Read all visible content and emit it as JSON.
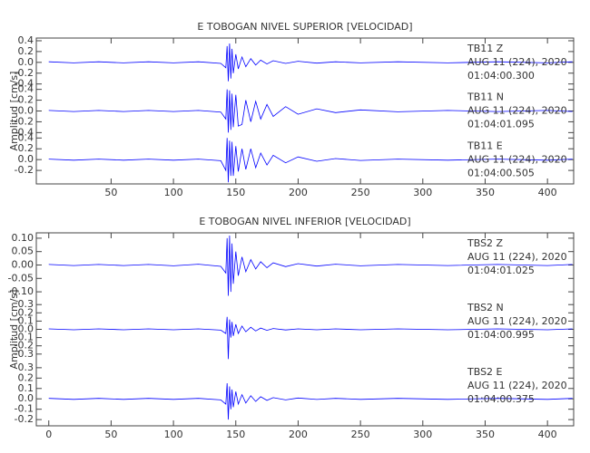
{
  "chart_data": [
    {
      "type": "line",
      "title": "E TOBOGAN NIVEL SUPERIOR [VELOCIDAD]",
      "y_label": "Amplitud [cm/s]",
      "xlim": [
        -10,
        421
      ],
      "xticks": [
        50,
        100,
        150,
        200,
        250,
        300,
        350,
        400
      ],
      "x": [
        0,
        20,
        40,
        60,
        80,
        100,
        120,
        138,
        142,
        143,
        144,
        145,
        146,
        147,
        148,
        150,
        152,
        155,
        158,
        162,
        166,
        170,
        175,
        180,
        190,
        200,
        215,
        230,
        250,
        280,
        320,
        360,
        400,
        420
      ],
      "series": [
        {
          "name": "TB11   Z",
          "date": "AUG 11 (224), 2020",
          "time": "01:04:00.300",
          "color": "#0000ff",
          "ylim": [
            -0.45,
            0.45
          ],
          "yticks": [
            {
              "value": 0.4,
              "label": "0.4"
            },
            {
              "value": 0.2,
              "label": "0.2"
            },
            {
              "value": 0,
              "label": "0.0"
            },
            {
              "value": -0.2,
              "label": "-0.2"
            },
            {
              "value": -0.4,
              "label": "-0.4"
            }
          ],
          "values": [
            0.01,
            -0.01,
            0.01,
            -0.01,
            0.01,
            -0.01,
            0.01,
            -0.02,
            -0.1,
            0.3,
            -0.35,
            0.35,
            -0.3,
            0.25,
            -0.2,
            0.15,
            -0.12,
            0.1,
            -0.08,
            0.07,
            -0.05,
            0.04,
            -0.03,
            0.03,
            -0.02,
            0.02,
            -0.015,
            0.01,
            -0.01,
            0.01,
            -0.01,
            0.01,
            -0.01,
            0.01
          ]
        },
        {
          "name": "TB11   N",
          "date": "AUG 11 (224), 2020",
          "time": "01:04:01.095",
          "color": "#0000ff",
          "ylim": [
            -0.45,
            0.45
          ],
          "yticks": [
            {
              "value": 0.4,
              "label": "0.4"
            },
            {
              "value": 0.2,
              "label": "0.2"
            },
            {
              "value": 0,
              "label": "0.0"
            },
            {
              "value": -0.2,
              "label": "-0.2"
            },
            {
              "value": -0.4,
              "label": "-0.4"
            }
          ],
          "values": [
            0.01,
            -0.01,
            0.01,
            -0.01,
            0.01,
            -0.01,
            0.01,
            -0.02,
            -0.15,
            0.4,
            -0.4,
            0.38,
            -0.35,
            0.32,
            -0.3,
            0.3,
            -0.28,
            -0.25,
            0.2,
            -0.2,
            0.18,
            -0.15,
            0.12,
            -0.1,
            0.08,
            -0.06,
            0.04,
            -0.03,
            0.02,
            -0.015,
            0.01,
            -0.01,
            0.01,
            -0.01
          ]
        },
        {
          "name": "TB11   E",
          "date": "AUG 11 (224), 2020",
          "time": "01:04:00.505",
          "color": "#0000ff",
          "ylim": [
            -0.45,
            0.45
          ],
          "yticks": [
            {
              "value": 0.4,
              "label": "0.4"
            },
            {
              "value": 0.2,
              "label": "0.2"
            },
            {
              "value": 0,
              "label": "0.0"
            },
            {
              "value": -0.2,
              "label": "-0.2"
            }
          ],
          "values": [
            0.01,
            -0.01,
            0.01,
            -0.01,
            0.01,
            -0.01,
            0.01,
            -0.02,
            -0.2,
            0.4,
            -0.42,
            0.35,
            -0.3,
            0.33,
            -0.3,
            0.25,
            -0.22,
            0.2,
            -0.18,
            0.2,
            -0.15,
            0.12,
            -0.1,
            0.08,
            -0.06,
            0.05,
            -0.03,
            0.02,
            -0.015,
            0.01,
            -0.01,
            0.01,
            -0.01,
            0.01
          ]
        }
      ]
    },
    {
      "type": "line",
      "title": "E TOBOGAN NIVEL INFERIOR [VELOCIDAD]",
      "y_label": "Amplitud [cm/s]",
      "xlim": [
        -10,
        421
      ],
      "xticks": [
        0,
        50,
        100,
        150,
        200,
        250,
        300,
        350,
        400
      ],
      "x": [
        0,
        20,
        40,
        60,
        80,
        100,
        120,
        138,
        142,
        143,
        144,
        145,
        146,
        147,
        148,
        150,
        152,
        155,
        158,
        162,
        166,
        170,
        175,
        180,
        190,
        200,
        215,
        230,
        250,
        280,
        320,
        360,
        400,
        420
      ],
      "series": [
        {
          "name": "TBS2   Z",
          "date": "AUG 11 (224), 2020",
          "time": "01:04:01.025",
          "color": "#0000ff",
          "ylim": [
            -0.12,
            0.12
          ],
          "yticks": [
            {
              "value": 0.1,
              "label": "0.10"
            },
            {
              "value": 0.05,
              "label": "0.05"
            },
            {
              "value": 0,
              "label": "0.00"
            },
            {
              "value": -0.05,
              "label": "-0.05"
            },
            {
              "value": -0.1,
              "label": "-0.10"
            }
          ],
          "values": [
            0.002,
            -0.002,
            0.002,
            -0.002,
            0.002,
            -0.003,
            0.003,
            -0.005,
            -0.03,
            0.1,
            -0.115,
            0.11,
            -0.1,
            0.08,
            -0.07,
            0.05,
            -0.04,
            0.03,
            -0.025,
            0.02,
            -0.015,
            0.012,
            -0.01,
            0.008,
            -0.006,
            0.005,
            -0.004,
            0.003,
            -0.003,
            0.002,
            -0.002,
            0.002,
            -0.002,
            0.002
          ]
        },
        {
          "name": "TBS2   N",
          "date": "AUG 11 (224), 2020",
          "time": "01:04:00.995",
          "color": "#0000ff",
          "ylim": [
            -0.39,
            0.39
          ],
          "yticks": [
            {
              "value": 0.3,
              "label": "0.3"
            },
            {
              "value": 0.2,
              "label": "0.2"
            },
            {
              "value": 0.1,
              "label": "0.1"
            },
            {
              "value": 0,
              "label": "0.0"
            },
            {
              "value": -0.1,
              "label": "-0.1"
            },
            {
              "value": -0.2,
              "label": "-0.2"
            },
            {
              "value": -0.3,
              "label": "-0.3"
            }
          ],
          "values": [
            0.005,
            -0.005,
            0.005,
            -0.005,
            0.005,
            -0.005,
            0.005,
            -0.01,
            -0.05,
            0.15,
            -0.36,
            0.12,
            -0.1,
            0.09,
            -0.08,
            0.06,
            -0.05,
            0.04,
            -0.03,
            0.025,
            -0.02,
            0.015,
            -0.012,
            0.01,
            -0.008,
            0.006,
            -0.005,
            0.005,
            -0.005,
            0.005,
            -0.005,
            0.005,
            -0.005,
            0.005
          ]
        },
        {
          "name": "TBS2   E",
          "date": "AUG 11 (224), 2020",
          "time": "01:04:00.375",
          "color": "#0000ff",
          "ylim": [
            -0.26,
            0.36
          ],
          "yticks": [
            {
              "value": 0.3,
              "label": "0.3"
            },
            {
              "value": 0.2,
              "label": "0.2"
            },
            {
              "value": 0.1,
              "label": "0.1"
            },
            {
              "value": 0,
              "label": "0.0"
            },
            {
              "value": -0.1,
              "label": "-0.1"
            },
            {
              "value": -0.2,
              "label": "-0.2"
            }
          ],
          "values": [
            0.005,
            -0.005,
            0.005,
            -0.005,
            0.005,
            -0.005,
            0.005,
            -0.01,
            -0.05,
            0.15,
            -0.2,
            0.12,
            -0.1,
            0.09,
            -0.08,
            0.07,
            -0.05,
            0.04,
            -0.04,
            0.03,
            -0.025,
            0.02,
            -0.015,
            0.012,
            -0.01,
            0.008,
            -0.006,
            0.005,
            -0.005,
            0.005,
            -0.005,
            0.005,
            -0.005,
            0.005
          ]
        }
      ]
    }
  ]
}
